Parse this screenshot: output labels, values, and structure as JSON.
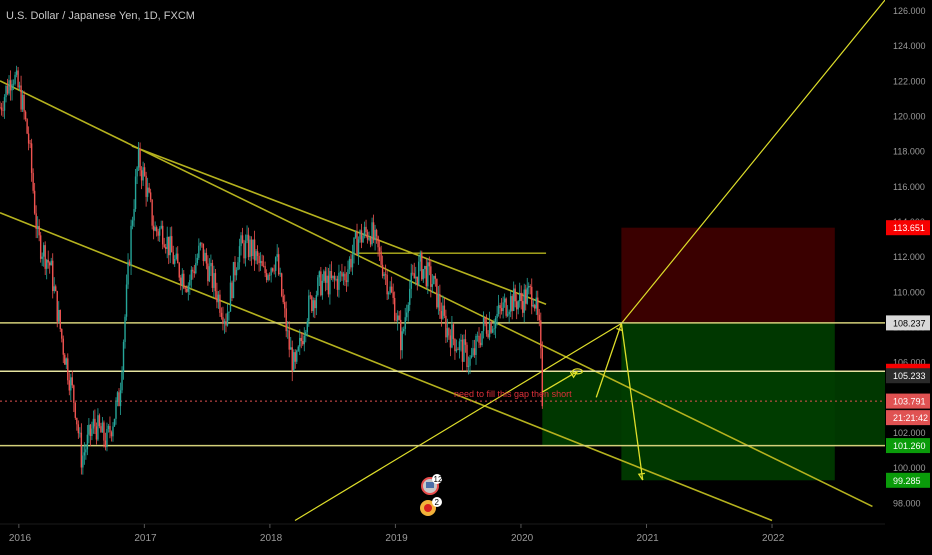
{
  "header": {
    "symbol_title": "U.S. Dollar / Japanese Yen, 1D, FXCM"
  },
  "price_axis": {
    "ticks": [
      "126.000",
      "124.000",
      "122.000",
      "120.000",
      "118.000",
      "116.000",
      "114.000",
      "112.000",
      "110.000",
      "108.000",
      "106.000",
      "104.000",
      "102.000",
      "100.000",
      "98.000"
    ]
  },
  "time_axis": {
    "labels": [
      "2016",
      "2017",
      "2018",
      "2019",
      "2020",
      "2021",
      "2022"
    ]
  },
  "price_tags": [
    {
      "label": "113.651",
      "bg": "#f70000",
      "fg": "#ffffff"
    },
    {
      "label": "108.237",
      "bg": "#d9d9d9",
      "fg": "#000000"
    },
    {
      "label": "105.485",
      "bg": "#f70000",
      "fg": "#ffffff"
    },
    {
      "label": "105.233",
      "bg": "#2a2a2a",
      "fg": "#ffffff"
    },
    {
      "label": "103.791",
      "bg": "#e05252",
      "fg": "#ffffff"
    },
    {
      "label": "21:21:42",
      "bg": "#e05252",
      "fg": "#ffffff"
    },
    {
      "label": "101.260",
      "bg": "#0a9b0a",
      "fg": "#ffffff"
    },
    {
      "label": "99.285",
      "bg": "#0a9b0a",
      "fg": "#ffffff"
    }
  ],
  "annotation": {
    "text": "need to fill this gap then short"
  },
  "event_badges": [
    {
      "count": "12"
    },
    {
      "count": "2"
    }
  ],
  "colors": {
    "background": "#000000",
    "candle_up": "#26a69a",
    "candle_down": "#ef5350",
    "trendline": "#b5b21e",
    "level_line": "#d4d07a",
    "arrow": "#dede2a",
    "annotation_text": "#e0303a",
    "stop_zone": "#3d0000",
    "target_zone": "#003d00",
    "axis_text": "#9a9a9a"
  },
  "chart_data": {
    "type": "line",
    "title": "U.S. Dollar / Japanese Yen, 1D, FXCM",
    "xlabel": "",
    "ylabel": "",
    "ylim": [
      96.8,
      126.6
    ],
    "xlim": [
      2015.85,
      2022.9
    ],
    "grid": false,
    "series": [
      {
        "name": "U.S. Dollar / Japanese Yen",
        "x": [
          2015.85,
          2015.95,
          2016.02,
          2016.08,
          2016.15,
          2016.25,
          2016.35,
          2016.45,
          2016.5,
          2016.6,
          2016.7,
          2016.8,
          2016.85,
          2016.9,
          2016.95,
          2017.0,
          2017.08,
          2017.15,
          2017.25,
          2017.35,
          2017.45,
          2017.55,
          2017.65,
          2017.75,
          2017.85,
          2017.95,
          2018.05,
          2018.15,
          2018.2,
          2018.3,
          2018.4,
          2018.5,
          2018.6,
          2018.7,
          2018.8,
          2018.9,
          2019.0,
          2019.05,
          2019.1,
          2019.2,
          2019.3,
          2019.4,
          2019.5,
          2019.6,
          2019.7,
          2019.8,
          2019.9,
          2020.0,
          2020.05,
          2020.1,
          2020.15,
          2020.17
        ],
        "values": [
          120.5,
          122.5,
          121.0,
          118.5,
          113.0,
          111.5,
          107.0,
          103.5,
          100.5,
          102.5,
          101.5,
          104.0,
          109.0,
          114.0,
          117.5,
          116.5,
          113.5,
          113.5,
          111.5,
          110.5,
          112.5,
          110.5,
          108.5,
          112.5,
          112.5,
          111.0,
          112.0,
          107.0,
          105.5,
          109.0,
          110.5,
          110.5,
          111.0,
          113.0,
          113.5,
          111.5,
          109.0,
          107.0,
          110.0,
          111.5,
          110.5,
          108.0,
          107.0,
          106.0,
          108.0,
          108.5,
          109.5,
          109.5,
          109.8,
          110.0,
          107.5,
          104.0
        ]
      }
    ],
    "horizontal_levels": [
      108.237,
      105.485,
      101.26
    ],
    "current_price": 103.791,
    "trendlines": [
      {
        "x": [
          2015.85,
          2022.8
        ],
        "y": [
          122.0,
          97.8
        ]
      },
      {
        "x": [
          2015.85,
          2022.0
        ],
        "y": [
          114.5,
          97.0
        ]
      },
      {
        "x": [
          2016.9,
          2020.2
        ],
        "y": [
          118.3,
          109.3
        ]
      },
      {
        "x": [
          2018.2,
          2020.8
        ],
        "y": [
          97.0,
          108.2
        ]
      },
      {
        "x": [
          2020.8,
          2022.9
        ],
        "y": [
          108.2,
          126.6
        ]
      }
    ],
    "resistance_segment": {
      "x": [
        2018.7,
        2020.2
      ],
      "y": [
        112.2,
        112.2
      ]
    },
    "trade_zones": [
      {
        "kind": "stop",
        "x": [
          2020.8,
          2022.5
        ],
        "y": [
          108.237,
          113.651
        ]
      },
      {
        "kind": "target",
        "x": [
          2020.8,
          2022.5
        ],
        "y": [
          99.285,
          108.237
        ]
      },
      {
        "kind": "target",
        "x": [
          2020.17,
          2023.4
        ],
        "y": [
          101.26,
          105.485
        ]
      }
    ],
    "arrows": [
      {
        "x": [
          2020.17,
          2020.45
        ],
        "y": [
          104.3,
          105.48
        ]
      },
      {
        "x": [
          2020.6,
          2020.8
        ],
        "y": [
          104.0,
          108.2
        ]
      },
      {
        "x": [
          2020.8,
          2020.97
        ],
        "y": [
          108.2,
          99.3
        ]
      }
    ]
  }
}
